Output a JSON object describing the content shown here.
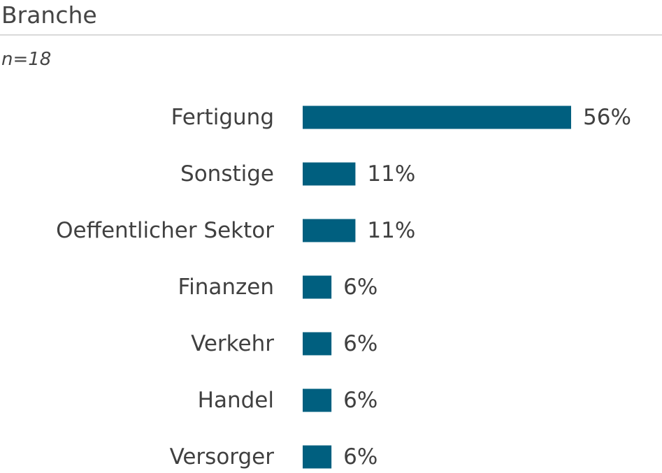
{
  "header": {
    "title": "Branche",
    "subtitle": "n=18"
  },
  "colors": {
    "bar": "#005f7f",
    "label": "#404040"
  },
  "chart_data": {
    "type": "bar",
    "orientation": "horizontal",
    "title": "Branche",
    "subtitle": "n=18",
    "categories": [
      "Fertigung",
      "Sonstige",
      "Oeffentlicher Sektor",
      "Finanzen",
      "Verkehr",
      "Handel",
      "Versorger"
    ],
    "values": [
      56,
      11,
      11,
      6,
      6,
      6,
      6
    ],
    "value_labels": [
      "56%",
      "11%",
      "11%",
      "6%",
      "6%",
      "6%",
      "6%"
    ],
    "unit": "%",
    "xlim": [
      0,
      56
    ],
    "grid": false,
    "legend": "none"
  }
}
